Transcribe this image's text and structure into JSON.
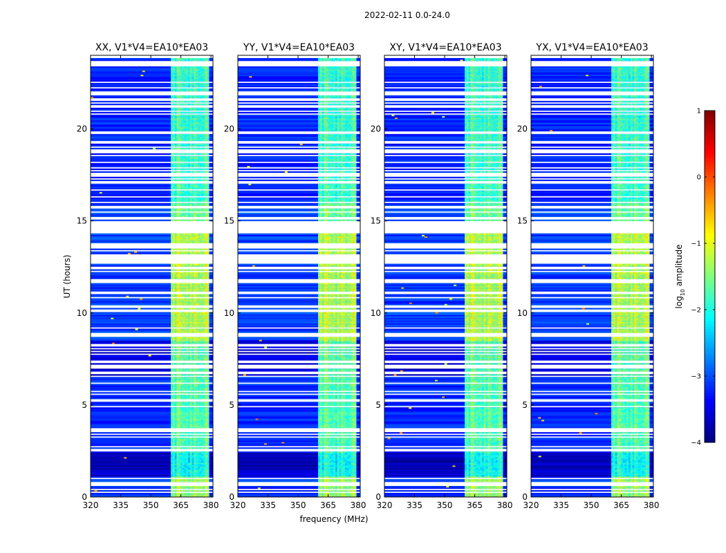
{
  "chart_data": {
    "type": "heatmap",
    "suptitle": "2022-02-11 0.0-24.0",
    "xlabel": "frequency (MHz)",
    "ylabel": "UT (hours)",
    "xlim": [
      320,
      381
    ],
    "ylim": [
      0,
      24
    ],
    "xticks": [
      320,
      335,
      350,
      365,
      380
    ],
    "yticks": [
      0,
      5,
      10,
      15,
      20
    ],
    "panels": [
      {
        "title": "XX, V1*V4=EA10*EA03",
        "pol": "XX"
      },
      {
        "title": "YY, V1*V4=EA10*EA03",
        "pol": "YY"
      },
      {
        "title": "XY, V1*V4=EA10*EA03",
        "pol": "XY"
      },
      {
        "title": "YX, V1*V4=EA10*EA03",
        "pol": "YX"
      }
    ],
    "bright_band_mhz": [
      360,
      379
    ],
    "band_levels": [
      {
        "ut_start": 0.0,
        "ut_end": 1.1,
        "band": -1.3,
        "outside": -3.1
      },
      {
        "ut_start": 1.1,
        "ut_end": 2.4,
        "band": -2.0,
        "outside": -3.7
      },
      {
        "ut_start": 2.4,
        "ut_end": 6.5,
        "band": -1.7,
        "outside": -3.2
      },
      {
        "ut_start": 6.5,
        "ut_end": 8.5,
        "band": -1.6,
        "outside": -3.5
      },
      {
        "ut_start": 8.5,
        "ut_end": 14.5,
        "band": -1.2,
        "outside": -3.1
      },
      {
        "ut_start": 14.5,
        "ut_end": 16.0,
        "band": -1.6,
        "outside": -3.1
      },
      {
        "ut_start": 16.0,
        "ut_end": 24.0,
        "band": -1.8,
        "outside": -3.2
      }
    ],
    "gaps_ut": [
      [
        2.45,
        2.65
      ],
      [
        14.55,
        14.85
      ],
      [
        15.65,
        15.8
      ],
      [
        18.75,
        18.9
      ],
      [
        21.8,
        22.05
      ],
      [
        23.45,
        23.6
      ]
    ],
    "colorbar": {
      "label": "log10 amplitude",
      "label_main": "log",
      "label_sub": "10",
      "label_rest": " amplitude",
      "min": -4,
      "max": 1,
      "ticks": [
        -4,
        -3,
        -2,
        -1,
        0,
        1
      ],
      "tick_labels": [
        "−4",
        "−3",
        "−2",
        "−1",
        "0",
        "1"
      ],
      "colormap": "jet"
    }
  }
}
